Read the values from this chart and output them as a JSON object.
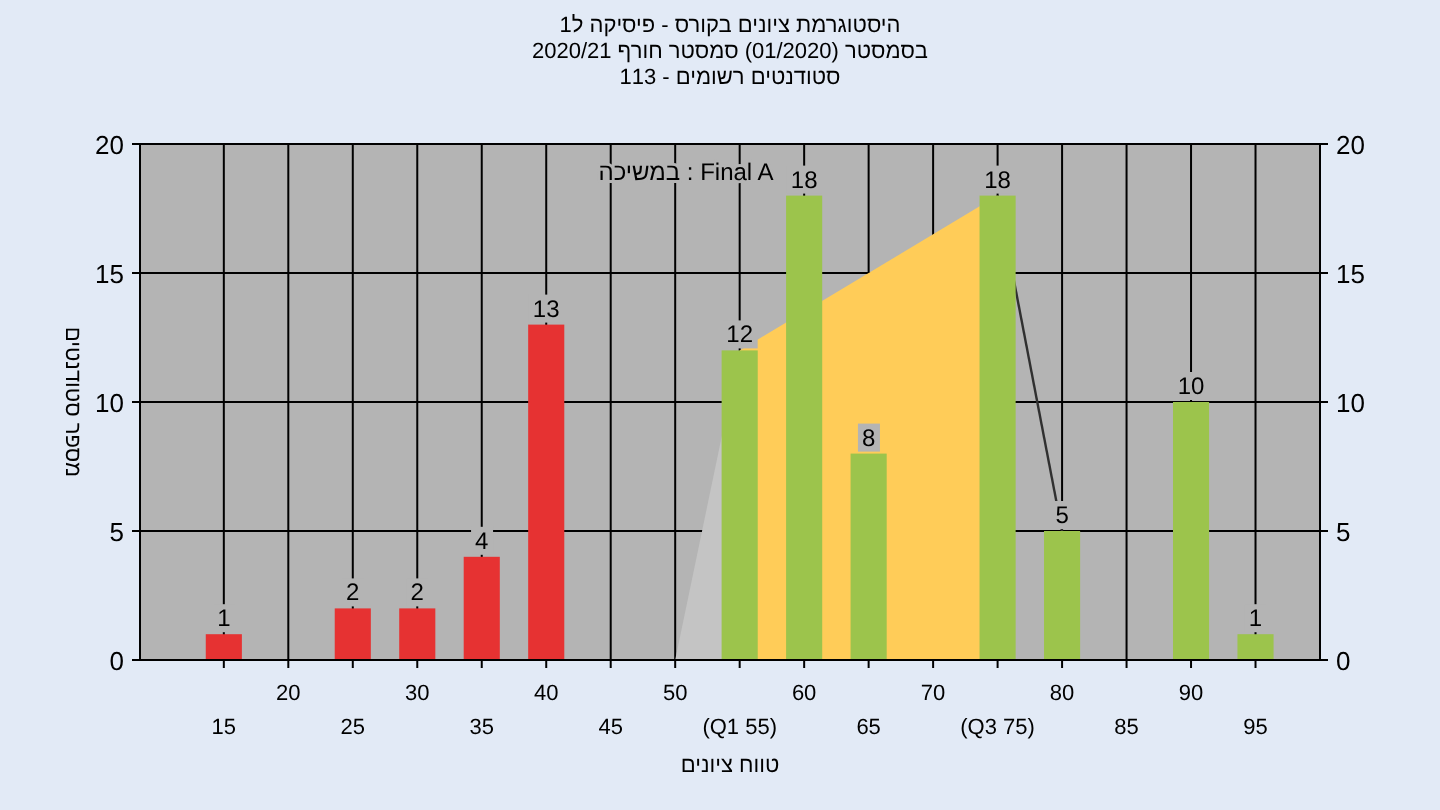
{
  "chart_data": {
    "type": "bar",
    "title": "היסטוגרמת ציונים בקורס - פיסיקה ל1",
    "subtitle": "בסמסטר (01/2020) סמסטר חורף 2020/21",
    "annotations": [
      "סטודנטים רשומים - 113",
      "במשיכה : Final A"
    ],
    "xlabel": "טווח ציונים",
    "ylabel": "מספר סטודנטים",
    "categories": [
      "15",
      "20",
      "25",
      "30",
      "35",
      "40",
      "45",
      "50",
      "(Q1 55)",
      "60",
      "65",
      "70",
      "(Q3 75)",
      "80",
      "85",
      "90",
      "95"
    ],
    "series": [
      {
        "type": "area",
        "color": "#c4c4c4",
        "values": [
          null,
          null,
          null,
          null,
          null,
          null,
          null,
          0,
          12,
          null,
          null,
          null,
          null,
          null,
          null,
          null,
          null
        ]
      },
      {
        "type": "area",
        "color": "#ffcc58",
        "values": [
          null,
          null,
          null,
          null,
          null,
          null,
          null,
          null,
          12,
          null,
          15,
          16.5,
          18,
          null,
          null,
          null,
          null
        ]
      },
      {
        "type": "line",
        "color": "#303030",
        "values": [
          null,
          null,
          null,
          null,
          null,
          null,
          null,
          null,
          null,
          null,
          null,
          null,
          18,
          5,
          null,
          null,
          null
        ]
      },
      {
        "values": [
          1,
          null,
          2,
          2,
          4,
          13,
          null,
          null,
          12,
          18,
          8,
          null,
          18,
          5,
          null,
          10,
          1
        ],
        "colors": [
          "#e63232",
          null,
          "#e63232",
          "#e63232",
          "#e63232",
          "#e63232",
          null,
          null,
          "#9cc44c",
          "#9cc44c",
          "#9cc44c",
          null,
          "#9cc44c",
          "#9cc44c",
          null,
          "#9cc44c",
          "#9cc44c"
        ],
        "value_labels": [
          "1",
          null,
          "2",
          "2",
          "4",
          "13",
          null,
          null,
          "12",
          "18",
          "8",
          null,
          "18",
          "5",
          null,
          "10",
          "1"
        ]
      }
    ],
    "ylim": [
      0,
      20
    ],
    "yticks": [
      0,
      5,
      10,
      15,
      20
    ],
    "y2lim": [
      0,
      20
    ],
    "y2ticks": [
      0,
      5,
      10,
      15,
      20
    ],
    "grid": true
  }
}
